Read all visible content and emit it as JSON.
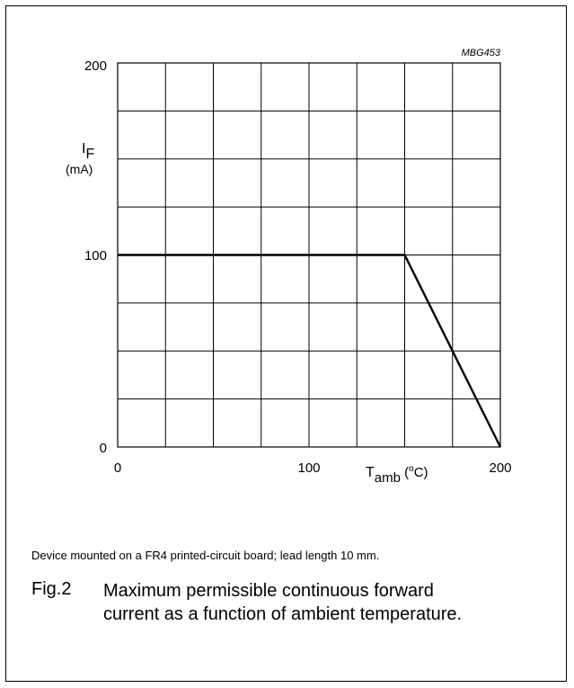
{
  "chart_data": {
    "type": "line",
    "code": "MBG453",
    "ylabel_main": "I",
    "ylabel_sub": "F",
    "ylabel_unit": "(mA)",
    "xlabel_main": "T",
    "xlabel_sub": "amb",
    "xlabel_unit_open": " (",
    "xlabel_unit_sup": "o",
    "xlabel_unit_close": "C)",
    "xlim": [
      0,
      200
    ],
    "ylim": [
      0,
      200
    ],
    "x_ticks": [
      "0",
      "100",
      "200"
    ],
    "y_ticks": [
      "200",
      "100",
      "0"
    ],
    "grid": true,
    "series": [
      {
        "x": [
          0,
          150,
          200
        ],
        "y": [
          100,
          100,
          0
        ]
      }
    ]
  },
  "note": "Device mounted on a FR4 printed-circuit board; lead length 10 mm.",
  "figure": {
    "number": "Fig.2",
    "caption_line1": "Maximum permissible continuous forward",
    "caption_line2": "current as a function of ambient temperature."
  }
}
